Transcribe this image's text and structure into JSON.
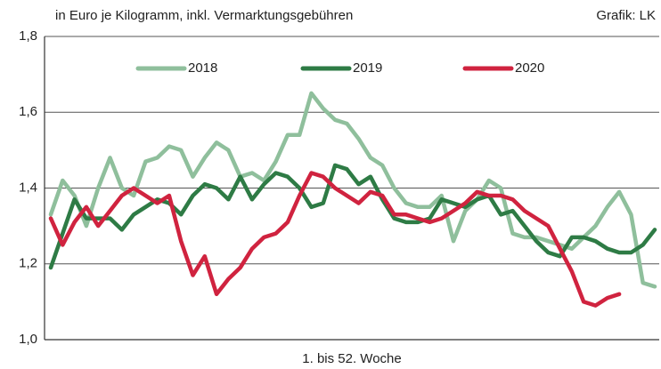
{
  "chart_data": {
    "type": "line",
    "title": "in Euro je Kilogramm, inkl. Vermarktungsgebühren",
    "source": "Grafik: LK",
    "x_label": "1. bis 52. Woche",
    "x": [
      1,
      2,
      3,
      4,
      5,
      6,
      7,
      8,
      9,
      10,
      11,
      12,
      13,
      14,
      15,
      16,
      17,
      18,
      19,
      20,
      21,
      22,
      23,
      24,
      25,
      26,
      27,
      28,
      29,
      30,
      31,
      32,
      33,
      34,
      35,
      36,
      37,
      38,
      39,
      40,
      41,
      42,
      43,
      44,
      45,
      46,
      47,
      48,
      49,
      50,
      51,
      52
    ],
    "xlim": [
      1,
      52
    ],
    "ylim": [
      1.0,
      1.8
    ],
    "yticks": [
      {
        "value": 1.0,
        "label": "1,0"
      },
      {
        "value": 1.2,
        "label": "1,2"
      },
      {
        "value": 1.4,
        "label": "1,4"
      },
      {
        "value": 1.6,
        "label": "1,6"
      },
      {
        "value": 1.8,
        "label": "1,8"
      }
    ],
    "grid": true,
    "legend": "top",
    "series": [
      {
        "name": "2018",
        "color": "#8fbf9c",
        "values": [
          1.33,
          1.42,
          1.38,
          1.3,
          1.4,
          1.48,
          1.4,
          1.38,
          1.47,
          1.48,
          1.51,
          1.5,
          1.43,
          1.48,
          1.52,
          1.5,
          1.43,
          1.44,
          1.42,
          1.47,
          1.54,
          1.54,
          1.65,
          1.61,
          1.58,
          1.57,
          1.53,
          1.48,
          1.46,
          1.4,
          1.36,
          1.35,
          1.35,
          1.38,
          1.26,
          1.34,
          1.37,
          1.42,
          1.4,
          1.28,
          1.27,
          1.27,
          1.26,
          1.25,
          1.24,
          1.27,
          1.3,
          1.35,
          1.39,
          1.33,
          1.15,
          1.14
        ]
      },
      {
        "name": "2019",
        "color": "#2e7b45",
        "values": [
          1.19,
          1.28,
          1.37,
          1.32,
          1.32,
          1.32,
          1.29,
          1.33,
          1.35,
          1.37,
          1.36,
          1.33,
          1.38,
          1.41,
          1.4,
          1.37,
          1.43,
          1.37,
          1.41,
          1.44,
          1.43,
          1.4,
          1.35,
          1.36,
          1.46,
          1.45,
          1.41,
          1.43,
          1.37,
          1.32,
          1.31,
          1.31,
          1.32,
          1.37,
          1.36,
          1.35,
          1.37,
          1.38,
          1.33,
          1.34,
          1.3,
          1.26,
          1.23,
          1.22,
          1.27,
          1.27,
          1.26,
          1.24,
          1.23,
          1.23,
          1.25,
          1.29
        ]
      },
      {
        "name": "2020",
        "color": "#d0233f",
        "values": [
          1.32,
          1.25,
          1.31,
          1.35,
          1.3,
          1.34,
          1.38,
          1.4,
          1.38,
          1.36,
          1.38,
          1.26,
          1.17,
          1.22,
          1.12,
          1.16,
          1.19,
          1.24,
          1.27,
          1.28,
          1.31,
          1.38,
          1.44,
          1.43,
          1.4,
          1.38,
          1.36,
          1.39,
          1.38,
          1.33,
          1.33,
          1.32,
          1.31,
          1.32,
          1.34,
          1.36,
          1.39,
          1.38,
          1.38,
          1.37,
          1.34,
          1.32,
          1.3,
          1.24,
          1.18,
          1.1,
          1.09,
          1.11,
          1.12,
          null,
          null,
          null
        ]
      }
    ]
  }
}
